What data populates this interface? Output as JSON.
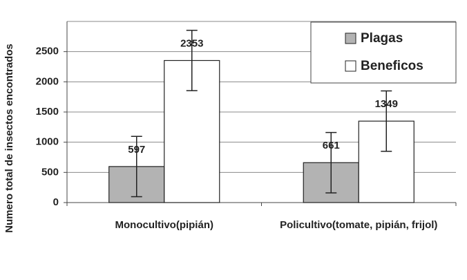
{
  "chart_data": {
    "type": "bar",
    "y_label": "Numero total de insectos encontrados",
    "categories": [
      "Monocultivo(pipián)",
      "Policultivo(tomate, pipián, frijol)"
    ],
    "series": [
      {
        "name": "Plagas",
        "color": "#b3b3b3",
        "values": [
          597,
          661
        ],
        "errors": [
          500,
          500
        ]
      },
      {
        "name": "Beneficos",
        "color": "#ffffff",
        "values": [
          2353,
          1349
        ],
        "errors": [
          500,
          500
        ]
      }
    ],
    "ylim": [
      0,
      3000
    ],
    "yticks": [
      0,
      500,
      1000,
      1500,
      2000,
      2500
    ],
    "grid": true,
    "legend": "upper right"
  }
}
